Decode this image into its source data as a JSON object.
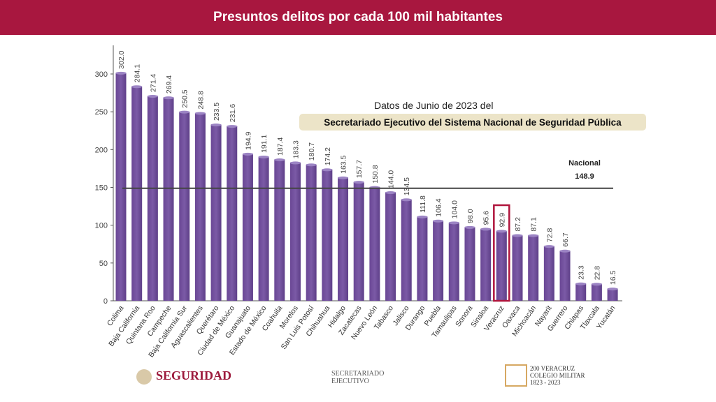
{
  "header": {
    "title": "Presuntos delitos por cada 100 mil habitantes"
  },
  "source": {
    "line1": "Datos  de Junio de 2023 del",
    "line2": "Secretariado Ejecutivo del Sistema Nacional de Seguridad Pública"
  },
  "logos": {
    "seguridad": "SEGURIDAD",
    "secretariado": "SECRETARIADO EJECUTIVO",
    "veracruz": "200 VERACRUZ COLEGIO MILITAR 1823 - 2023"
  },
  "chart_data": {
    "type": "bar",
    "categories": [
      "Colima",
      "Baja California",
      "Quintana Roo",
      "Campeche",
      "Baja California Sur",
      "Aguascalientes",
      "Querétaro",
      "Ciudad de México",
      "Guanajuato",
      "Estado de México",
      "Coahuila",
      "Morelos",
      "San Luis Potosí",
      "Chihuahua",
      "Hidalgo",
      "Zacatecas",
      "Nuevo León",
      "Tabasco",
      "Jalisco",
      "Durango",
      "Puebla",
      "Tamaulipas",
      "Sonora",
      "Sinaloa",
      "Veracruz",
      "Oaxaca",
      "Michoacán",
      "Nayarit",
      "Guerrero",
      "Chiapas",
      "Tlaxcala",
      "Yucatán"
    ],
    "values": [
      302.0,
      284.1,
      271.4,
      269.4,
      250.5,
      248.8,
      233.5,
      231.6,
      194.9,
      191.1,
      187.4,
      183.3,
      180.7,
      174.2,
      163.5,
      157.7,
      150.8,
      144.0,
      134.5,
      111.8,
      106.4,
      104.0,
      98.0,
      95.6,
      92.9,
      87.2,
      87.1,
      72.8,
      66.7,
      23.3,
      22.8,
      16.5
    ],
    "ylim": [
      0,
      300
    ],
    "yticks": [
      0,
      50,
      100,
      150,
      200,
      250,
      300
    ],
    "reference_line": {
      "label": "Nacional",
      "value": 148.9
    },
    "highlight": "Veracruz",
    "bar_color": "#7b5aa6",
    "highlight_color": "#b0153d",
    "grid": false
  }
}
